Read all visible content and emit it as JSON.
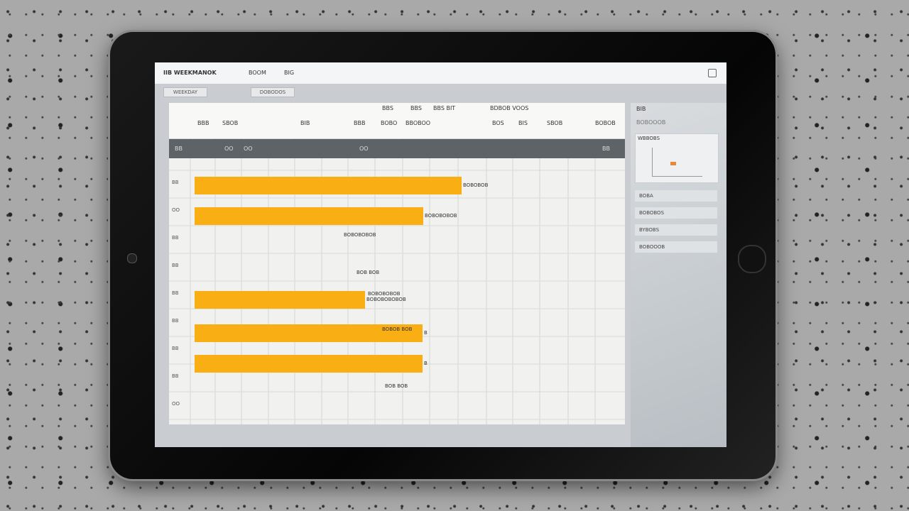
{
  "header": {
    "title": "IIB WEEKMANOK",
    "items": [
      "BOOM",
      "BIG"
    ]
  },
  "toolbar": {
    "buttons": [
      "WEEKDAY",
      "DOBODOS"
    ]
  },
  "gantt": {
    "top_headers": [
      "BBS",
      "BBS",
      "BBS BIT",
      "BDBOB VOOS"
    ],
    "columns": [
      "BBB",
      "SBOB",
      "BIB",
      "BBB",
      "BOBO",
      "BBOBOO",
      "BOS",
      "BIS",
      "SBOB",
      "BOBOB"
    ],
    "band_labels": [
      "BB",
      "OO",
      "OO",
      "OO",
      "BB"
    ],
    "rows": [
      "BB",
      "OO",
      "BB",
      "BB",
      "BB",
      "BB",
      "BB",
      "BB",
      "OO"
    ],
    "bars": [
      {
        "label": "BOBOBOB"
      },
      {
        "label": "BOBOBOBOB"
      },
      {
        "label": "BOBOBOBOBOB"
      },
      {
        "label": "B"
      },
      {
        "label": "B"
      }
    ],
    "notes": [
      "BOBOBOBOB",
      "BOB BOB",
      "BOBOBOBOB",
      "BOBOB BOB",
      "BOB BOB"
    ]
  },
  "sidebar": {
    "title": "BIB",
    "subtitle": "BOBOOOB",
    "card_title": "WBBOBS",
    "items": [
      "BOBA",
      "BOBOBOS",
      "BYBOBS",
      "BOBOOOB"
    ]
  }
}
